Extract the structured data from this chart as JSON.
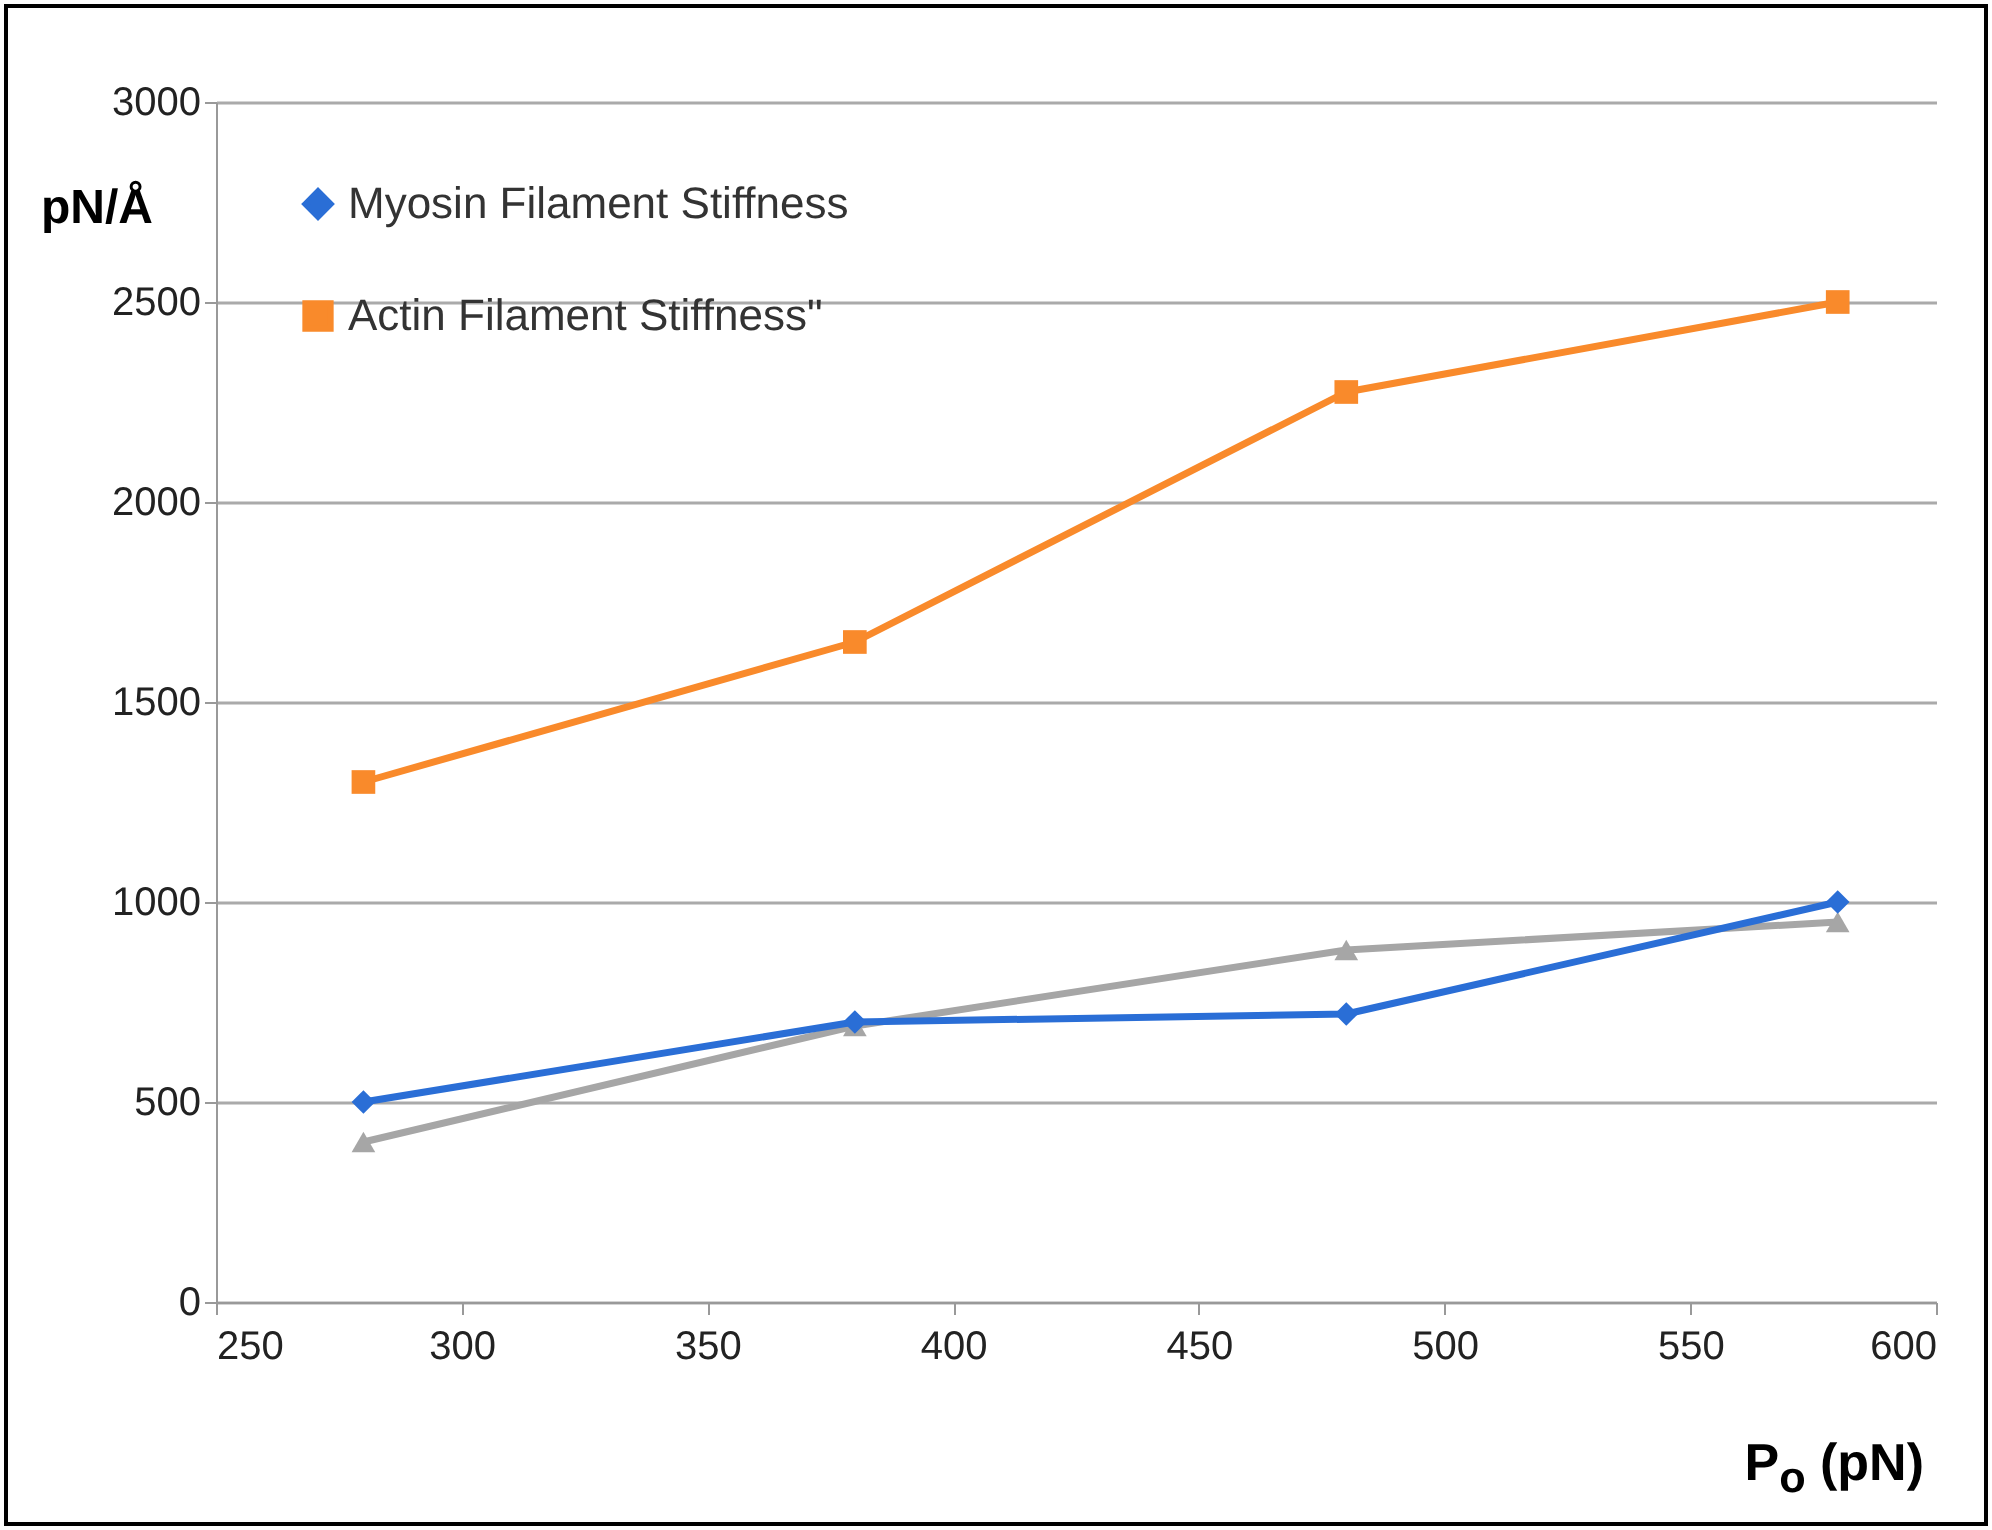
{
  "chart_data": {
    "type": "line",
    "xlabel": "P$_{o}$ (pN)",
    "ylabel": "pN/Å",
    "x": [
      280,
      380,
      480,
      580
    ],
    "series": [
      {
        "name": "Myosin Filament Stiffness",
        "color": "#2a6ed6",
        "values": [
          500,
          700,
          720,
          1000
        ],
        "marker": "diamond"
      },
      {
        "name": "Actin Filament Stiffness\"",
        "color": "#f98a2b",
        "values": [
          1300,
          1650,
          2275,
          2500
        ],
        "marker": "square"
      },
      {
        "color": "#a6a6a6",
        "values": [
          400,
          690,
          880,
          950
        ],
        "marker": "triangle"
      }
    ],
    "xlim": [
      250,
      600
    ],
    "xticks": [
      250,
      300,
      350,
      400,
      450,
      500,
      550,
      600
    ],
    "ylim": [
      0,
      3000
    ],
    "yticks": [
      0,
      500,
      1000,
      1500,
      2000,
      2500,
      3000
    ],
    "grid": "y",
    "legend": "top left",
    "line_style": "solid"
  }
}
